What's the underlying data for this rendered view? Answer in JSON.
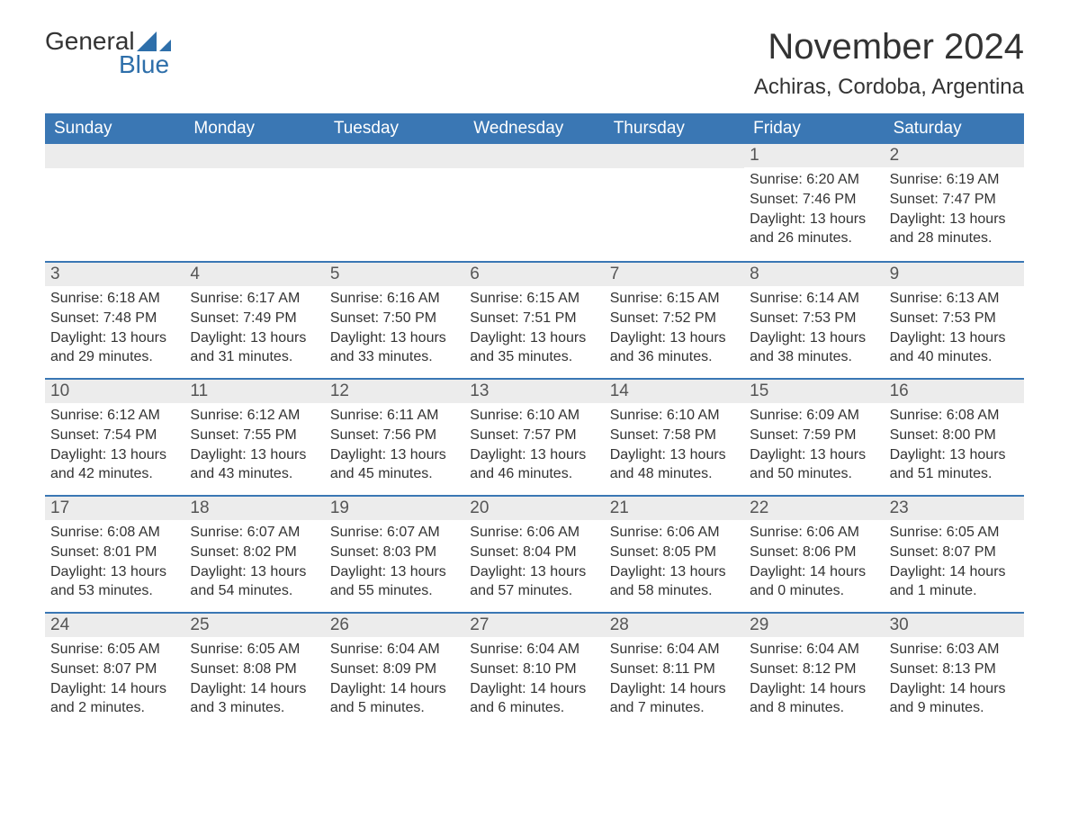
{
  "logo": {
    "text1": "General",
    "text2": "Blue"
  },
  "title": "November 2024",
  "location": "Achiras, Cordoba, Argentina",
  "day_names": [
    "Sunday",
    "Monday",
    "Tuesday",
    "Wednesday",
    "Thursday",
    "Friday",
    "Saturday"
  ],
  "colors": {
    "header_bg": "#3a77b4",
    "header_fg": "#ffffff",
    "strip_bg": "#ececec",
    "divider": "#3a77b4",
    "logo_blue": "#2e6faa",
    "text": "#333333"
  },
  "weeks": [
    [
      {
        "empty": true
      },
      {
        "empty": true
      },
      {
        "empty": true
      },
      {
        "empty": true
      },
      {
        "empty": true
      },
      {
        "day": "1",
        "sunrise": "Sunrise: 6:20 AM",
        "sunset": "Sunset: 7:46 PM",
        "daylight1": "Daylight: 13 hours",
        "daylight2": "and 26 minutes."
      },
      {
        "day": "2",
        "sunrise": "Sunrise: 6:19 AM",
        "sunset": "Sunset: 7:47 PM",
        "daylight1": "Daylight: 13 hours",
        "daylight2": "and 28 minutes."
      }
    ],
    [
      {
        "day": "3",
        "sunrise": "Sunrise: 6:18 AM",
        "sunset": "Sunset: 7:48 PM",
        "daylight1": "Daylight: 13 hours",
        "daylight2": "and 29 minutes."
      },
      {
        "day": "4",
        "sunrise": "Sunrise: 6:17 AM",
        "sunset": "Sunset: 7:49 PM",
        "daylight1": "Daylight: 13 hours",
        "daylight2": "and 31 minutes."
      },
      {
        "day": "5",
        "sunrise": "Sunrise: 6:16 AM",
        "sunset": "Sunset: 7:50 PM",
        "daylight1": "Daylight: 13 hours",
        "daylight2": "and 33 minutes."
      },
      {
        "day": "6",
        "sunrise": "Sunrise: 6:15 AM",
        "sunset": "Sunset: 7:51 PM",
        "daylight1": "Daylight: 13 hours",
        "daylight2": "and 35 minutes."
      },
      {
        "day": "7",
        "sunrise": "Sunrise: 6:15 AM",
        "sunset": "Sunset: 7:52 PM",
        "daylight1": "Daylight: 13 hours",
        "daylight2": "and 36 minutes."
      },
      {
        "day": "8",
        "sunrise": "Sunrise: 6:14 AM",
        "sunset": "Sunset: 7:53 PM",
        "daylight1": "Daylight: 13 hours",
        "daylight2": "and 38 minutes."
      },
      {
        "day": "9",
        "sunrise": "Sunrise: 6:13 AM",
        "sunset": "Sunset: 7:53 PM",
        "daylight1": "Daylight: 13 hours",
        "daylight2": "and 40 minutes."
      }
    ],
    [
      {
        "day": "10",
        "sunrise": "Sunrise: 6:12 AM",
        "sunset": "Sunset: 7:54 PM",
        "daylight1": "Daylight: 13 hours",
        "daylight2": "and 42 minutes."
      },
      {
        "day": "11",
        "sunrise": "Sunrise: 6:12 AM",
        "sunset": "Sunset: 7:55 PM",
        "daylight1": "Daylight: 13 hours",
        "daylight2": "and 43 minutes."
      },
      {
        "day": "12",
        "sunrise": "Sunrise: 6:11 AM",
        "sunset": "Sunset: 7:56 PM",
        "daylight1": "Daylight: 13 hours",
        "daylight2": "and 45 minutes."
      },
      {
        "day": "13",
        "sunrise": "Sunrise: 6:10 AM",
        "sunset": "Sunset: 7:57 PM",
        "daylight1": "Daylight: 13 hours",
        "daylight2": "and 46 minutes."
      },
      {
        "day": "14",
        "sunrise": "Sunrise: 6:10 AM",
        "sunset": "Sunset: 7:58 PM",
        "daylight1": "Daylight: 13 hours",
        "daylight2": "and 48 minutes."
      },
      {
        "day": "15",
        "sunrise": "Sunrise: 6:09 AM",
        "sunset": "Sunset: 7:59 PM",
        "daylight1": "Daylight: 13 hours",
        "daylight2": "and 50 minutes."
      },
      {
        "day": "16",
        "sunrise": "Sunrise: 6:08 AM",
        "sunset": "Sunset: 8:00 PM",
        "daylight1": "Daylight: 13 hours",
        "daylight2": "and 51 minutes."
      }
    ],
    [
      {
        "day": "17",
        "sunrise": "Sunrise: 6:08 AM",
        "sunset": "Sunset: 8:01 PM",
        "daylight1": "Daylight: 13 hours",
        "daylight2": "and 53 minutes."
      },
      {
        "day": "18",
        "sunrise": "Sunrise: 6:07 AM",
        "sunset": "Sunset: 8:02 PM",
        "daylight1": "Daylight: 13 hours",
        "daylight2": "and 54 minutes."
      },
      {
        "day": "19",
        "sunrise": "Sunrise: 6:07 AM",
        "sunset": "Sunset: 8:03 PM",
        "daylight1": "Daylight: 13 hours",
        "daylight2": "and 55 minutes."
      },
      {
        "day": "20",
        "sunrise": "Sunrise: 6:06 AM",
        "sunset": "Sunset: 8:04 PM",
        "daylight1": "Daylight: 13 hours",
        "daylight2": "and 57 minutes."
      },
      {
        "day": "21",
        "sunrise": "Sunrise: 6:06 AM",
        "sunset": "Sunset: 8:05 PM",
        "daylight1": "Daylight: 13 hours",
        "daylight2": "and 58 minutes."
      },
      {
        "day": "22",
        "sunrise": "Sunrise: 6:06 AM",
        "sunset": "Sunset: 8:06 PM",
        "daylight1": "Daylight: 14 hours",
        "daylight2": "and 0 minutes."
      },
      {
        "day": "23",
        "sunrise": "Sunrise: 6:05 AM",
        "sunset": "Sunset: 8:07 PM",
        "daylight1": "Daylight: 14 hours",
        "daylight2": "and 1 minute."
      }
    ],
    [
      {
        "day": "24",
        "sunrise": "Sunrise: 6:05 AM",
        "sunset": "Sunset: 8:07 PM",
        "daylight1": "Daylight: 14 hours",
        "daylight2": "and 2 minutes."
      },
      {
        "day": "25",
        "sunrise": "Sunrise: 6:05 AM",
        "sunset": "Sunset: 8:08 PM",
        "daylight1": "Daylight: 14 hours",
        "daylight2": "and 3 minutes."
      },
      {
        "day": "26",
        "sunrise": "Sunrise: 6:04 AM",
        "sunset": "Sunset: 8:09 PM",
        "daylight1": "Daylight: 14 hours",
        "daylight2": "and 5 minutes."
      },
      {
        "day": "27",
        "sunrise": "Sunrise: 6:04 AM",
        "sunset": "Sunset: 8:10 PM",
        "daylight1": "Daylight: 14 hours",
        "daylight2": "and 6 minutes."
      },
      {
        "day": "28",
        "sunrise": "Sunrise: 6:04 AM",
        "sunset": "Sunset: 8:11 PM",
        "daylight1": "Daylight: 14 hours",
        "daylight2": "and 7 minutes."
      },
      {
        "day": "29",
        "sunrise": "Sunrise: 6:04 AM",
        "sunset": "Sunset: 8:12 PM",
        "daylight1": "Daylight: 14 hours",
        "daylight2": "and 8 minutes."
      },
      {
        "day": "30",
        "sunrise": "Sunrise: 6:03 AM",
        "sunset": "Sunset: 8:13 PM",
        "daylight1": "Daylight: 14 hours",
        "daylight2": "and 9 minutes."
      }
    ]
  ]
}
